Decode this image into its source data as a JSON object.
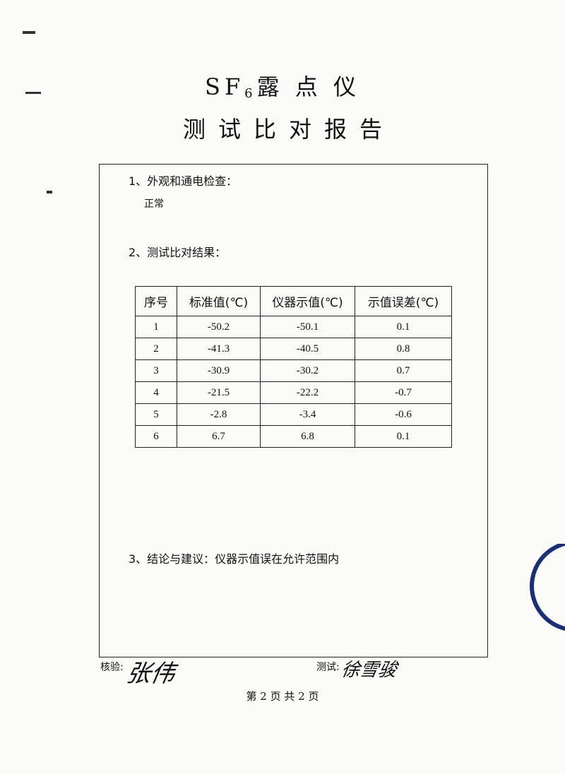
{
  "title": {
    "prefix": "SF",
    "subscript": "6",
    "name": "露 点 仪",
    "subtitle": "测试比对报告"
  },
  "sections": {
    "s1_label": "1、外观和通电检查：",
    "s1_value": "正常",
    "s2_label": "2、测试比对结果：",
    "s3_label": "3、结论与建议：仪器示值误在允许范围内"
  },
  "table": {
    "headers": [
      "序号",
      "标准值(℃)",
      "仪器示值(℃)",
      "示值误差(℃)"
    ],
    "rows": [
      [
        "1",
        "-50.2",
        "-50.1",
        "0.1"
      ],
      [
        "2",
        "-41.3",
        "-40.5",
        "0.8"
      ],
      [
        "3",
        "-30.9",
        "-30.2",
        "0.7"
      ],
      [
        "4",
        "-21.5",
        "-22.2",
        "-0.7"
      ],
      [
        "5",
        "-2.8",
        "-3.4",
        "-0.6"
      ],
      [
        "6",
        "6.7",
        "6.8",
        "0.1"
      ]
    ]
  },
  "signatures": {
    "check_label": "核验:",
    "check_name": "张伟",
    "test_label": "测试:",
    "test_name": "徐雪骏"
  },
  "footer": {
    "page": "第 2 页   共 2 页"
  },
  "stamp_color": "#1a2f7a"
}
